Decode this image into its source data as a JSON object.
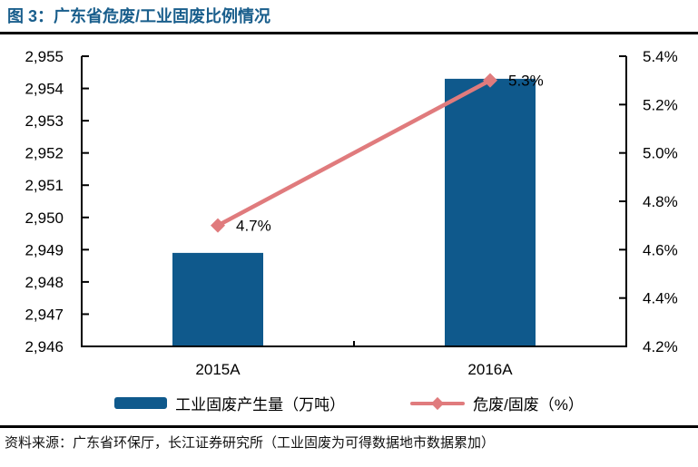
{
  "title": "图 3：广东省危废/工业固废比例情况",
  "source_note": "资料来源：广东省环保厅，长江证券研究所（工业固废为可得数据地市数据累加）",
  "colors": {
    "title": "#195E8C",
    "bar": "#0F598C",
    "line": "#E07B7D",
    "axis": "#000000",
    "text": "#000000"
  },
  "chart_data": {
    "type": "bar",
    "subtype": "combo bar + line, dual y-axis",
    "categories": [
      "2015A",
      "2016A"
    ],
    "series": [
      {
        "name": "工业固废产生量（万吨）",
        "chart": "bar",
        "axis": "left",
        "values": [
          2948.9,
          2954.3
        ]
      },
      {
        "name": "危废/固废（%）",
        "chart": "line",
        "axis": "right",
        "values": [
          4.7,
          5.3
        ],
        "point_labels": [
          "4.7%",
          "5.3%"
        ]
      }
    ],
    "left_axis": {
      "min": 2946,
      "max": 2955,
      "step": 1,
      "tick_labels": [
        "2,946",
        "2,947",
        "2,948",
        "2,949",
        "2,950",
        "2,951",
        "2,952",
        "2,953",
        "2,954",
        "2,955"
      ]
    },
    "right_axis": {
      "min": 4.2,
      "max": 5.4,
      "step": 0.2,
      "tick_labels": [
        "4.2%",
        "4.4%",
        "4.6%",
        "4.8%",
        "5.0%",
        "5.2%",
        "5.4%"
      ]
    },
    "grid": false,
    "legend_position": "bottom"
  }
}
